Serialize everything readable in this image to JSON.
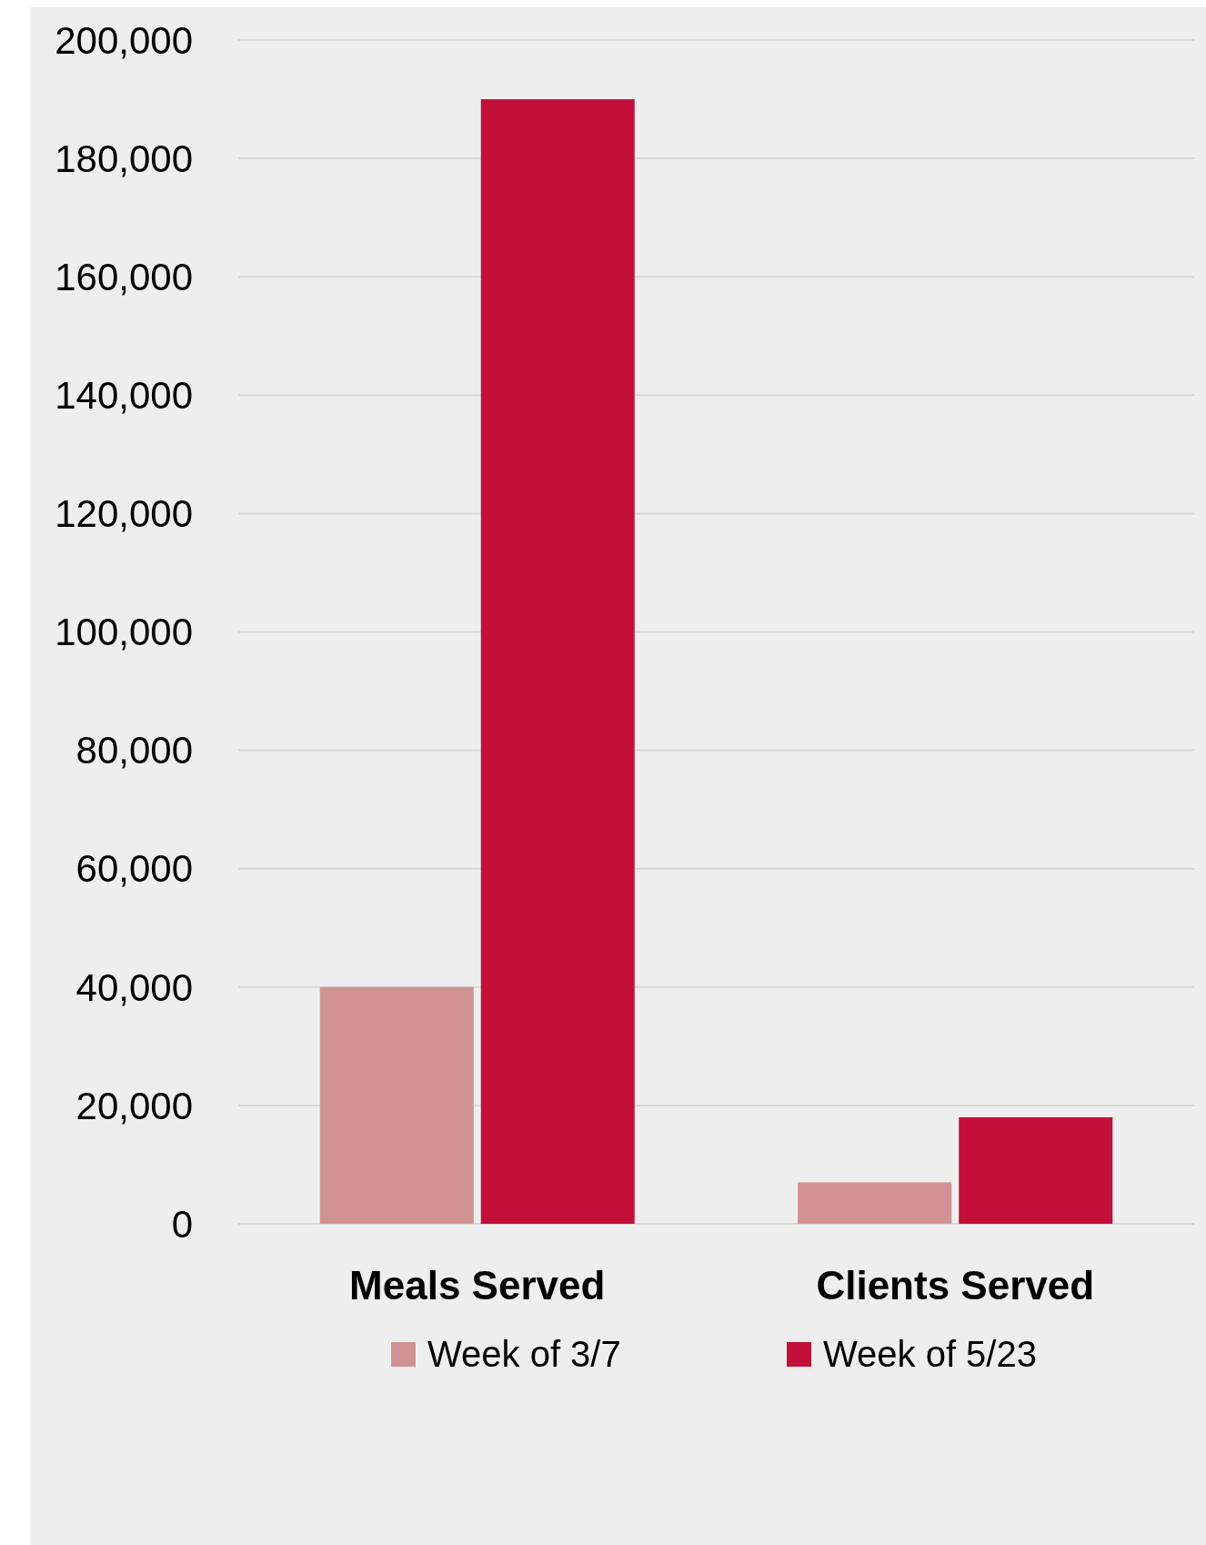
{
  "chart_data": {
    "type": "bar",
    "categories": [
      "Meals Served",
      "Clients Served"
    ],
    "series": [
      {
        "name": "Week of 3/7",
        "color": "#d09292",
        "values": [
          40000,
          7000
        ]
      },
      {
        "name": "Week of 5/23",
        "color": "#c2103b",
        "values": [
          190000,
          18000
        ]
      }
    ],
    "ylim": [
      0,
      200000
    ],
    "yticks": [
      0,
      {
        "value": 20000,
        "label": "20,000"
      },
      {
        "value": 40000,
        "label": "40,000"
      },
      {
        "value": 60000,
        "label": "60,000"
      },
      {
        "value": 80000,
        "label": "80,000"
      },
      {
        "value": 100000,
        "label": "100,000"
      },
      {
        "value": 120000,
        "label": "120,000"
      },
      {
        "value": 140000,
        "label": "140,000"
      },
      {
        "value": 160000,
        "label": "160,000"
      },
      {
        "value": 180000,
        "label": "180,000"
      },
      {
        "value": 200000,
        "label": "200,000"
      }
    ],
    "grid": "y",
    "legend": "bottom"
  }
}
